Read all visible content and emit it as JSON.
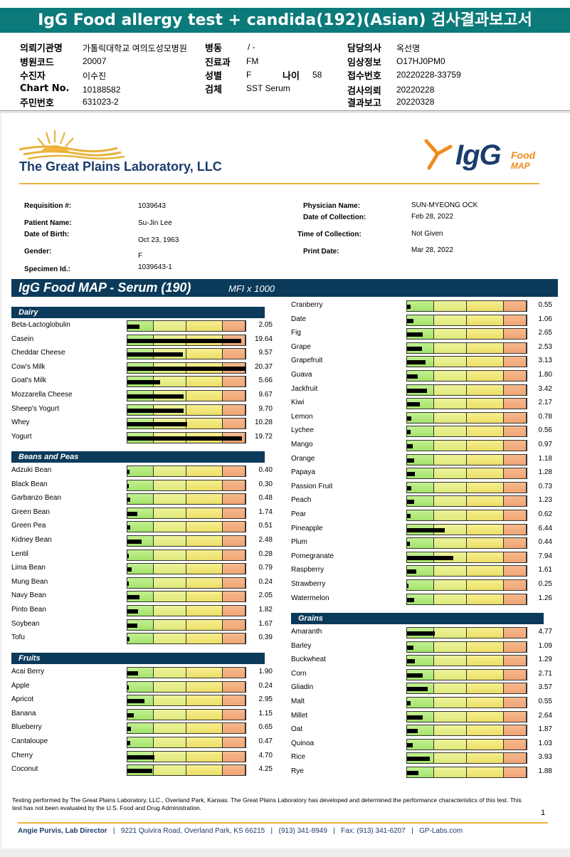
{
  "banner_title": "IgG Food allergy test + candida(192)(Asian) 검사결과보고서",
  "report_header": {
    "left": [
      {
        "label": "의뢰기관명",
        "value": "가톨릭대학교 여의도성모병원"
      },
      {
        "label": "병원코드",
        "value": "20007"
      },
      {
        "label": "수진자",
        "value": "이수진"
      },
      {
        "label": "Chart No.",
        "value": "10188582"
      },
      {
        "label": "주민번호",
        "value": "631023-2"
      }
    ],
    "middle": [
      {
        "label": "병동",
        "value": "/ -"
      },
      {
        "label": "진료과",
        "value": "FM"
      },
      {
        "label": "성별",
        "value": "F"
      },
      {
        "label": "검체",
        "value": "SST Serum"
      }
    ],
    "age_label": "나이",
    "age_value": "58",
    "right": [
      {
        "label": "담당의사",
        "value": "옥선명"
      },
      {
        "label": "임상정보",
        "value": "O17HJ0PM0"
      },
      {
        "label": "접수번호",
        "value": "20220228-33759"
      },
      {
        "label": "검사의뢰",
        "value": "20220228"
      },
      {
        "label": "결과보고",
        "value": "20220328"
      }
    ]
  },
  "lab_name": "The Great Plains Laboratory, LLC",
  "brand": {
    "igg": "IgG",
    "food": "Food",
    "map": "MAP",
    "colors": {
      "orange": "#f08a1c",
      "navy": "#1b3c6e",
      "gold": "#e8b23c"
    }
  },
  "patient": {
    "requisition_label": "Requisition #:",
    "requisition": "1039643",
    "name_label": "Patient Name:",
    "name": "Su-Jin Lee",
    "dob_label": "Date of Birth:",
    "dob": "Oct 23, 1963",
    "gender_label": "Gender:",
    "gender": "F",
    "specimen_label": "Specimen Id.:",
    "specimen": "1039643-1",
    "physician_label": "Physician Name:",
    "physician": "SUN-MYEONG OCK",
    "collection_date_label": "Date of Collection:",
    "collection_date": "Feb 28, 2022",
    "collection_time_label": "Time of Collection:",
    "collection_time": "Not Given",
    "print_date_label": "Print Date:",
    "print_date": "Mar 28, 2022"
  },
  "map_title": "IgG Food MAP - Serum (190)",
  "map_units": "MFI x 1000",
  "gauge_max": 20.37,
  "categories": [
    {
      "name": "Dairy",
      "items": [
        {
          "name": "Beta-Lactoglobulin",
          "value": 2.05
        },
        {
          "name": "Casein",
          "value": 19.64
        },
        {
          "name": "Cheddar Cheese",
          "value": 9.57
        },
        {
          "name": "Cow's Milk",
          "value": 20.37
        },
        {
          "name": "Goat's Milk",
          "value": 5.66
        },
        {
          "name": "Mozzarella Cheese",
          "value": 9.67
        },
        {
          "name": "Sheep's Yogurt",
          "value": 9.7
        },
        {
          "name": "Whey",
          "value": 10.28
        },
        {
          "name": "Yogurt",
          "value": 19.72
        }
      ]
    },
    {
      "name": "Beans and Peas",
      "items": [
        {
          "name": "Adzuki Bean",
          "value": 0.4
        },
        {
          "name": "Black Bean",
          "value": 0.3
        },
        {
          "name": "Garbanzo Bean",
          "value": 0.48
        },
        {
          "name": "Green Bean",
          "value": 1.74
        },
        {
          "name": "Green Pea",
          "value": 0.51
        },
        {
          "name": "Kidney Bean",
          "value": 2.48
        },
        {
          "name": "Lentil",
          "value": 0.28
        },
        {
          "name": "Lima Bean",
          "value": 0.79
        },
        {
          "name": "Mung Bean",
          "value": 0.24
        },
        {
          "name": "Navy Bean",
          "value": 2.05
        },
        {
          "name": "Pinto Bean",
          "value": 1.82
        },
        {
          "name": "Soybean",
          "value": 1.67
        },
        {
          "name": "Tofu",
          "value": 0.39
        }
      ]
    },
    {
      "name": "Fruits",
      "items": [
        {
          "name": "Acai Berry",
          "value": 1.9
        },
        {
          "name": "Apple",
          "value": 0.24
        },
        {
          "name": "Apricot",
          "value": 2.95
        },
        {
          "name": "Banana",
          "value": 1.15
        },
        {
          "name": "Blueberry",
          "value": 0.65
        },
        {
          "name": "Cantaloupe",
          "value": 0.47
        },
        {
          "name": "Cherry",
          "value": 4.7
        },
        {
          "name": "Coconut",
          "value": 4.25
        }
      ]
    }
  ],
  "right_fruits": [
    {
      "name": "Cranberry",
      "value": 0.55
    },
    {
      "name": "Date",
      "value": 1.06
    },
    {
      "name": "Fig",
      "value": 2.65
    },
    {
      "name": "Grape",
      "value": 2.53
    },
    {
      "name": "Grapefruit",
      "value": 3.13
    },
    {
      "name": "Guava",
      "value": 1.8
    },
    {
      "name": "Jackfruit",
      "value": 3.42
    },
    {
      "name": "Kiwi",
      "value": 2.17
    },
    {
      "name": "Lemon",
      "value": 0.78
    },
    {
      "name": "Lychee",
      "value": 0.56
    },
    {
      "name": "Mango",
      "value": 0.97
    },
    {
      "name": "Orange",
      "value": 1.18
    },
    {
      "name": "Papaya",
      "value": 1.28
    },
    {
      "name": "Passion Fruit",
      "value": 0.73
    },
    {
      "name": "Peach",
      "value": 1.23
    },
    {
      "name": "Pear",
      "value": 0.62
    },
    {
      "name": "Pineapple",
      "value": 6.44
    },
    {
      "name": "Plum",
      "value": 0.44
    },
    {
      "name": "Pomegranate",
      "value": 7.94
    },
    {
      "name": "Raspberry",
      "value": 1.61
    },
    {
      "name": "Strawberry",
      "value": 0.25
    },
    {
      "name": "Watermelon",
      "value": 1.26
    }
  ],
  "grains": {
    "name": "Grains",
    "items": [
      {
        "name": "Amaranth",
        "value": 4.77
      },
      {
        "name": "Barley",
        "value": 1.09
      },
      {
        "name": "Buckwheat",
        "value": 1.29
      },
      {
        "name": "Corn",
        "value": 2.71
      },
      {
        "name": "Gliadin",
        "value": 3.57
      },
      {
        "name": "Malt",
        "value": 0.55
      },
      {
        "name": "Millet",
        "value": 2.64
      },
      {
        "name": "Oat",
        "value": 1.87
      },
      {
        "name": "Quinoa",
        "value": 1.03
      },
      {
        "name": "Rice",
        "value": 3.93
      },
      {
        "name": "Rye",
        "value": 1.88
      }
    ]
  },
  "footnote": "Testing performed by The Great Plains Laboratory, LLC., Overland Park, Kansas.  The Great Plains Laboratory has developed and determined the performance characteristics of this test.  This test has not been evaluated by the U.S. Food and Drug Administration.",
  "page_number": "1",
  "footer": {
    "director": "Angie Purvis, Lab Director",
    "address": "9221 Quivira Road, Overland Park, KS 66215",
    "phone": "(913) 341-8949",
    "fax": "Fax: (913) 341-6207",
    "web": "GP-Labs.com"
  }
}
